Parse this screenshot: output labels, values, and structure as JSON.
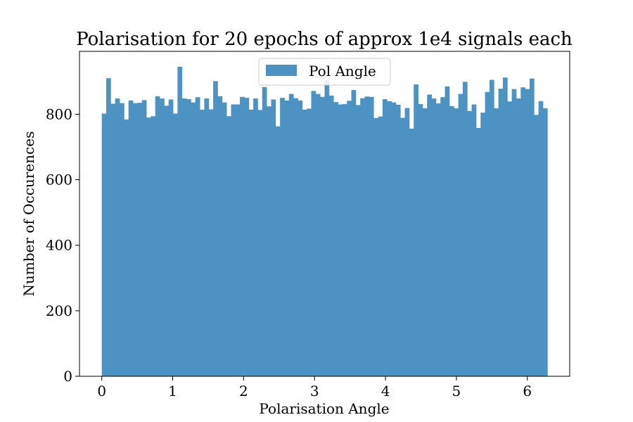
{
  "chart_data": {
    "type": "bar",
    "subtype": "histogram",
    "title": "Polarisation for 20 epochs of approx 1e4 signals each",
    "xlabel": "Polarisation Angle",
    "ylabel": "Number of Occurences",
    "xlim": [
      -0.3142,
      6.5974
    ],
    "ylim": [
      0,
      992
    ],
    "xticks": [
      0,
      1,
      2,
      3,
      4,
      5,
      6
    ],
    "yticks": [
      0,
      200,
      400,
      600,
      800
    ],
    "grid": false,
    "legend_position": "top-center",
    "bar_color": "#4c93c3",
    "series": [
      {
        "name": "Pol Angle",
        "bin_edges_range": [
          0,
          6.2832
        ],
        "bin_count": 100,
        "values": [
          802,
          910,
          832,
          848,
          834,
          784,
          842,
          834,
          835,
          843,
          790,
          794,
          855,
          848,
          826,
          845,
          802,
          945,
          848,
          846,
          836,
          852,
          814,
          848,
          815,
          901,
          855,
          836,
          794,
          830,
          830,
          853,
          850,
          814,
          848,
          813,
          883,
          824,
          845,
          763,
          850,
          842,
          862,
          849,
          842,
          814,
          817,
          871,
          862,
          853,
          905,
          857,
          837,
          830,
          831,
          841,
          874,
          828,
          849,
          854,
          853,
          788,
          793,
          846,
          840,
          836,
          829,
          789,
          819,
          756,
          891,
          831,
          818,
          860,
          848,
          833,
          852,
          885,
          825,
          818,
          862,
          899,
          810,
          830,
          758,
          805,
          868,
          905,
          818,
          878,
          912,
          839,
          877,
          848,
          882,
          877,
          909,
          798,
          840,
          818
        ]
      }
    ]
  }
}
